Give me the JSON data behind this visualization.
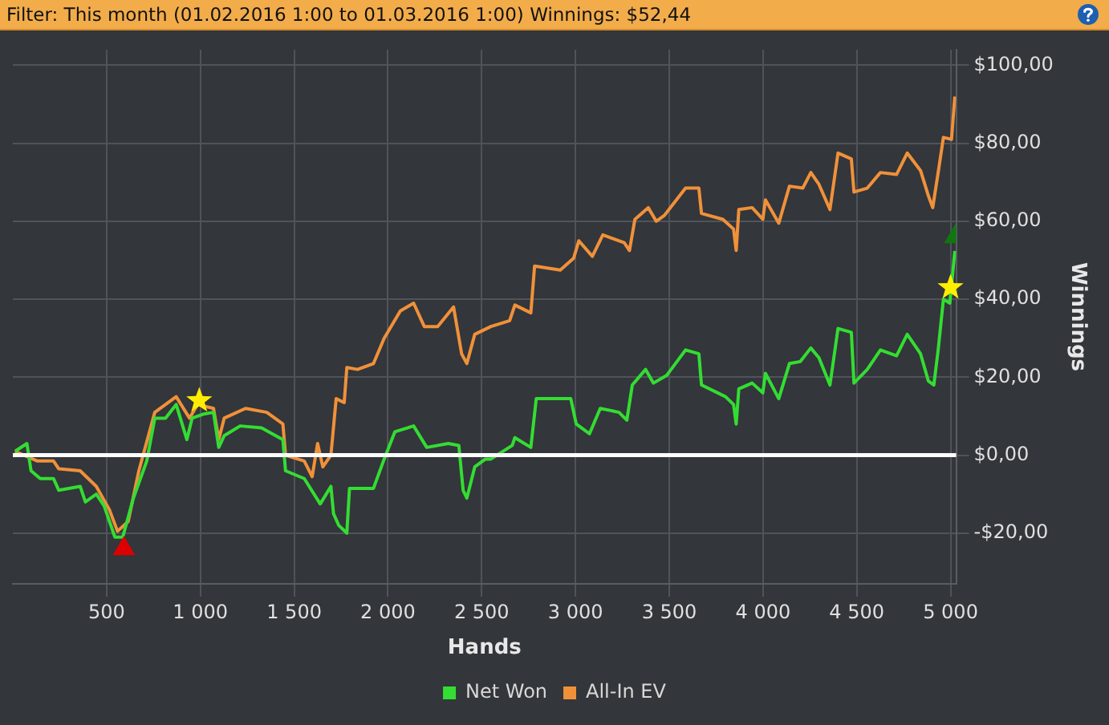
{
  "chart_data": {
    "type": "line",
    "title": "Filter: This month (01.02.2016 1:00 to 01.03.2016 1:00) Winnings: $52,44",
    "xlabel": "Hands",
    "ylabel": "Winnings",
    "xlim": [
      0,
      5030
    ],
    "ylim": [
      -33,
      104
    ],
    "xticks": [
      {
        "value": 500,
        "label": "500"
      },
      {
        "value": 1000,
        "label": "1 000"
      },
      {
        "value": 1500,
        "label": "1 500"
      },
      {
        "value": 2000,
        "label": "2 000"
      },
      {
        "value": 2500,
        "label": "2 500"
      },
      {
        "value": 3000,
        "label": "3 000"
      },
      {
        "value": 3500,
        "label": "3 500"
      },
      {
        "value": 4000,
        "label": "4 000"
      },
      {
        "value": 4500,
        "label": "4 500"
      },
      {
        "value": 5000,
        "label": "5 000"
      }
    ],
    "yticks": [
      {
        "value": -20,
        "label": "-$20,00"
      },
      {
        "value": 0,
        "label": "$0,00"
      },
      {
        "value": 20,
        "label": "$20,00"
      },
      {
        "value": 40,
        "label": "$40,00"
      },
      {
        "value": 60,
        "label": "$60,00"
      },
      {
        "value": 80,
        "label": "$80,00"
      },
      {
        "value": 100,
        "label": "$100,00"
      }
    ],
    "grid": true,
    "legend": "bottom",
    "marker": "none",
    "line_style": "solid",
    "ref_lines": [
      {
        "axis": "y",
        "value": 0,
        "color": "#ffffff"
      }
    ],
    "series": [
      {
        "name": "Net Won",
        "color": "#33dd33",
        "x": [
          12,
          75,
          97,
          146,
          217,
          245,
          359,
          387,
          445,
          487,
          544,
          586,
          643,
          714,
          757,
          814,
          871,
          928,
          956,
          1013,
          1070,
          1098,
          1127,
          1212,
          1326,
          1440,
          1454,
          1554,
          1639,
          1696,
          1710,
          1738,
          1781,
          1795,
          1923,
          1980,
          2037,
          2137,
          2207,
          2322,
          2378,
          2401,
          2421,
          2463,
          2520,
          2549,
          2663,
          2677,
          2762,
          2791,
          2975,
          3004,
          3075,
          3132,
          3232,
          3274,
          3303,
          3374,
          3416,
          3487,
          3587,
          3658,
          3672,
          3800,
          3843,
          3857,
          3871,
          3942,
          3999,
          4013,
          4084,
          4141,
          4198,
          4255,
          4298,
          4357,
          4400,
          4471,
          4485,
          4556,
          4626,
          4712,
          4769,
          4840,
          4882,
          4911,
          4934,
          4962,
          4996,
          5023
        ],
        "values": [
          1,
          3,
          -4,
          -6,
          -6,
          -9,
          -8,
          -12,
          -10,
          -13,
          -21,
          -21,
          -11,
          -1.5,
          9.5,
          9.5,
          13,
          4,
          9.5,
          10.5,
          11,
          2,
          5,
          7.5,
          7,
          4,
          -4,
          -6,
          -12.5,
          -8,
          -15,
          -18,
          -20,
          -8.5,
          -8.5,
          -1,
          6,
          7.5,
          2,
          3,
          2.5,
          -9,
          -11,
          -3,
          -1,
          -1,
          2.5,
          4.5,
          2,
          14.5,
          14.5,
          8,
          5.5,
          12,
          11,
          9,
          18,
          22,
          18.5,
          20.5,
          27,
          26,
          18,
          15,
          13,
          8,
          17,
          18.5,
          16,
          21,
          14.5,
          23.5,
          24,
          27.5,
          25,
          18,
          32.5,
          31.5,
          18.5,
          22,
          27,
          25.5,
          31,
          26,
          19,
          18,
          27,
          40,
          39,
          52.4
        ]
      },
      {
        "name": "All-In EV",
        "color": "#f0913a",
        "x": [
          12,
          131,
          217,
          245,
          359,
          445,
          515,
          558,
          615,
          672,
          757,
          871,
          942,
          985,
          1070,
          1098,
          1127,
          1241,
          1354,
          1440,
          1454,
          1554,
          1596,
          1625,
          1653,
          1696,
          1724,
          1767,
          1781,
          1838,
          1923,
          1980,
          2066,
          2137,
          2194,
          2265,
          2350,
          2393,
          2421,
          2463,
          2549,
          2649,
          2677,
          2762,
          2782,
          2919,
          2990,
          3018,
          3090,
          3146,
          3260,
          3288,
          3317,
          3388,
          3431,
          3474,
          3587,
          3658,
          3672,
          3786,
          3843,
          3857,
          3871,
          3942,
          3999,
          4013,
          4084,
          4141,
          4212,
          4255,
          4298,
          4357,
          4400,
          4471,
          4485,
          4556,
          4626,
          4712,
          4769,
          4840,
          4882,
          4905,
          4934,
          4962,
          5005,
          5023
        ],
        "values": [
          1,
          -1.5,
          -1.5,
          -3.5,
          -4,
          -8,
          -14,
          -19.5,
          -17,
          -4,
          11,
          15,
          9.5,
          13,
          12,
          4,
          9.5,
          12,
          11,
          8,
          0,
          -1.5,
          -5.5,
          3,
          -3,
          0,
          14.5,
          13.5,
          22.5,
          22,
          23.5,
          30,
          37,
          39,
          33,
          33,
          38,
          26,
          23.5,
          31,
          33,
          34.5,
          38.5,
          36.5,
          48.5,
          47.5,
          50.5,
          55,
          51,
          56.5,
          54.5,
          52.5,
          60.5,
          63.5,
          60,
          61.5,
          68.5,
          68.5,
          62,
          60.5,
          58,
          52.5,
          63,
          63.5,
          60.5,
          65.5,
          59.5,
          69,
          68.5,
          72.5,
          69.5,
          63,
          77.5,
          76,
          67.5,
          68.5,
          72.5,
          72,
          77.5,
          73,
          66.5,
          63.5,
          72.5,
          81.5,
          81,
          92
        ]
      },
      {
        "type": "scatter",
        "marker": "triangle",
        "color": "#dd0000",
        "x": [
          592
        ],
        "values": [
          -24
        ]
      },
      {
        "type": "scatter",
        "marker": "star",
        "color": "#ffee00",
        "x": [
          994,
          5000
        ],
        "values": [
          14,
          43
        ]
      },
      {
        "type": "scatter",
        "marker": "triangle",
        "color": "#117711",
        "x": [
          5025
        ],
        "values": [
          56
        ]
      }
    ]
  }
}
